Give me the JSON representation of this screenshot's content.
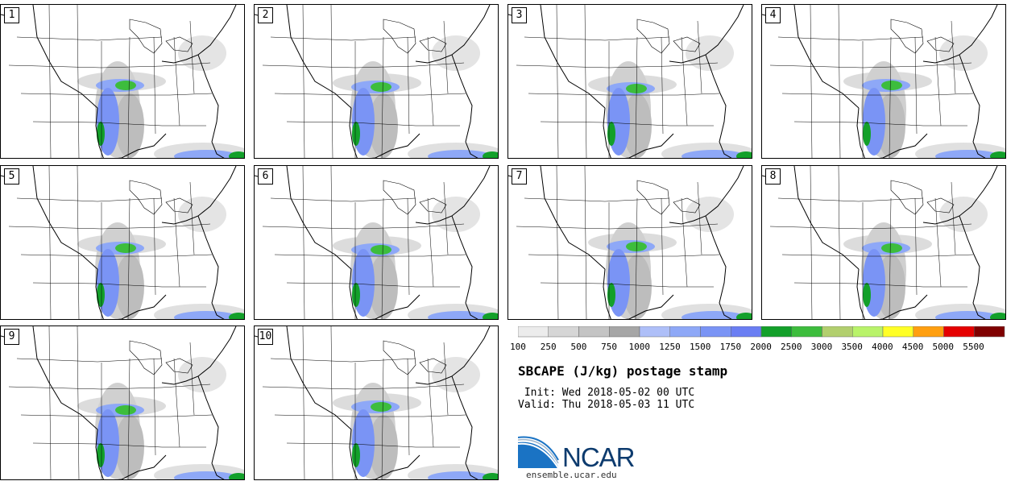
{
  "panels": [
    {
      "number": "1"
    },
    {
      "number": "2"
    },
    {
      "number": "3"
    },
    {
      "number": "4"
    },
    {
      "number": "5"
    },
    {
      "number": "6"
    },
    {
      "number": "7"
    },
    {
      "number": "8"
    },
    {
      "number": "9"
    },
    {
      "number": "10"
    }
  ],
  "colorbar": {
    "labels": [
      "100",
      "250",
      "500",
      "750",
      "1000",
      "1250",
      "1500",
      "1750",
      "2000",
      "2500",
      "3000",
      "3500",
      "4000",
      "4500",
      "5000",
      "5500"
    ],
    "colors": [
      "#ececec",
      "#d6d6d6",
      "#c4c4c4",
      "#a6a6a6",
      "#aebff8",
      "#8ea8f7",
      "#7a94f5",
      "#6a7ef3",
      "#13a02a",
      "#3dbd3d",
      "#b2cf6e",
      "#b9f36a",
      "#ffff26",
      "#ff9f10",
      "#e50000",
      "#7f0000"
    ]
  },
  "title": "SBCAPE (J/kg) postage stamp",
  "init": " Init: Wed 2018-05-02 00 UTC",
  "valid": "Valid: Thu 2018-05-03 11 UTC",
  "logo": {
    "text": "NCAR",
    "url": "ensemble.ucar.edu",
    "colors": {
      "blue": "#1a73c4",
      "navy": "#0d3b6e"
    }
  }
}
